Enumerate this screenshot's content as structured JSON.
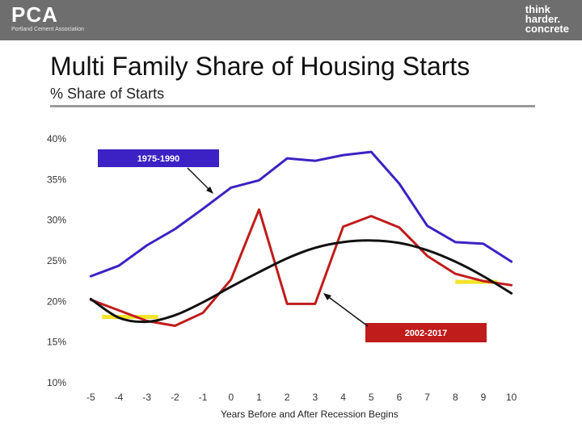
{
  "header": {
    "logo_left": "PCA",
    "logo_left_sub": "Portland Cement Association",
    "logo_right_line1": "think",
    "logo_right_line2": "harder.",
    "logo_right_line3": "concrete"
  },
  "slide": {
    "title": "Multi Family Share of Housing Starts",
    "subtitle": "% Share of Starts"
  },
  "chart_data": {
    "type": "line",
    "xlabel": "Years Before and After Recession Begins",
    "ylabel": "",
    "x": [
      -5,
      -4,
      -3,
      -2,
      -1,
      0,
      1,
      2,
      3,
      4,
      5,
      6,
      7,
      8,
      9,
      10
    ],
    "xticks": [
      "-5",
      "-4",
      "-3",
      "-2",
      "-1",
      "0",
      "1",
      "2",
      "3",
      "4",
      "5",
      "6",
      "7",
      "8",
      "9",
      "10"
    ],
    "ylim": [
      10,
      40
    ],
    "yticks": [
      "10%",
      "15%",
      "20%",
      "25%",
      "30%",
      "35%",
      "40%"
    ],
    "series": [
      {
        "name": "1975-1990",
        "color": "#3c22c4",
        "values": [
          23.1,
          24.4,
          26.9,
          28.9,
          31.4,
          34.0,
          34.9,
          37.6,
          37.3,
          38.0,
          38.4,
          34.5,
          29.3,
          27.3,
          27.1,
          24.9
        ]
      },
      {
        "name": "2002-2017",
        "color": "#c01c1c",
        "values": [
          20.2,
          18.9,
          17.6,
          17.0,
          18.6,
          22.7,
          31.3,
          19.7,
          19.7,
          29.2,
          30.5,
          29.1,
          25.6,
          23.4,
          22.5,
          22.0
        ]
      },
      {
        "name": "",
        "color": "#111111",
        "values": [
          20.3,
          18.0,
          17.5,
          18.3,
          19.9,
          21.8,
          23.6,
          25.3,
          26.6,
          27.3,
          27.5,
          27.2,
          26.3,
          24.9,
          23.1,
          21.0
        ]
      }
    ],
    "annotations": [
      {
        "label": "1975-1990",
        "fill": "#3c22c4"
      },
      {
        "label": "2002-2017",
        "fill": "#c01c1c"
      }
    ],
    "highlights": [
      {
        "x_from": -4.6,
        "x_to": -2.6,
        "y": 18.1,
        "color": "#f2e42a"
      },
      {
        "x_from": 8.0,
        "x_to": 9.5,
        "y": 22.4,
        "color": "#f2e42a"
      }
    ]
  }
}
